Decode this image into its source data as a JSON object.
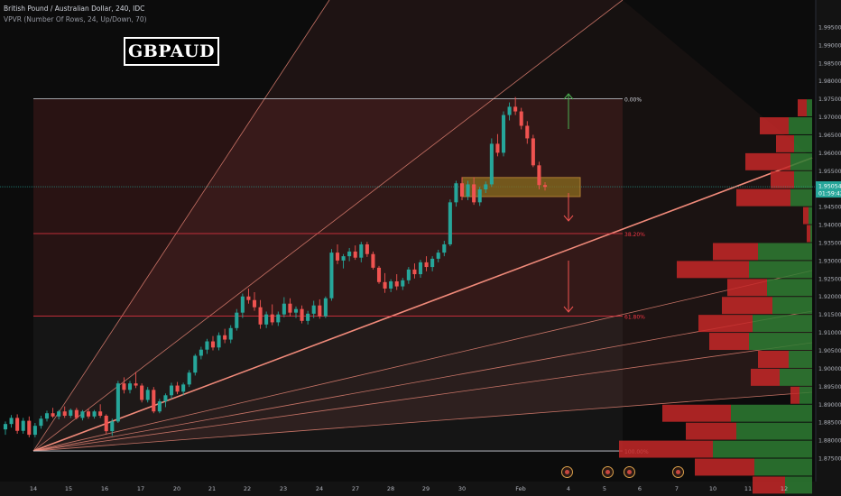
{
  "header": {
    "line1": "British Pound / Australian Dollar, 240, IDC",
    "line2": "VPVR (Number Of Rows, 24, Up/Down, 70)"
  },
  "symbol_label": "GBPAUD",
  "colors": {
    "background": "#0c0c0c",
    "up_candle": "#26a69a",
    "down_candle": "#ef5350",
    "fan_line": "#f08a7a",
    "fib_line": "#f23645",
    "zone_fill": "#8a6d1e",
    "vp_up": "#2e7d32",
    "vp_down": "#c62828"
  },
  "chart_data": {
    "type": "candlestick",
    "y_axis_ticks": [
      "1.99500",
      "1.99000",
      "1.98500",
      "1.98000",
      "1.97500",
      "1.97000",
      "1.96500",
      "1.96000",
      "1.95500",
      "1.95000",
      "1.94500",
      "1.94000",
      "1.93500",
      "1.93000",
      "1.92500",
      "1.92000",
      "1.91500",
      "1.91000",
      "1.90500",
      "1.90000",
      "1.89500",
      "1.89000",
      "1.88500",
      "1.88000",
      "1.87500"
    ],
    "ylim": [
      1.8735,
      1.9995
    ],
    "x_axis_ticks": [
      "14",
      "15",
      "16",
      "17",
      "20",
      "21",
      "22",
      "23",
      "24",
      "27",
      "28",
      "29",
      "30",
      "Feb",
      "4",
      "5",
      "6",
      "7",
      "10",
      "11",
      "12"
    ],
    "current_price": "1.95054",
    "countdown": "01:59:42",
    "fib_levels": [
      {
        "label": "0.00%",
        "price": 1.975
      },
      {
        "label": "38.20%",
        "price": 1.9375
      },
      {
        "label": "61.80%",
        "price": 1.9145
      },
      {
        "label": "100.00%",
        "price": 1.877
      }
    ],
    "zone": {
      "top": 1.9531,
      "bottom": 1.9478
    },
    "candles": [
      [
        1.883,
        1.8852,
        1.8815,
        1.8845
      ],
      [
        1.8845,
        1.887,
        1.8835,
        1.8862
      ],
      [
        1.8862,
        1.8872,
        1.8818,
        1.8826
      ],
      [
        1.8826,
        1.8862,
        1.8818,
        1.8854
      ],
      [
        1.8854,
        1.8866,
        1.8808,
        1.8815
      ],
      [
        1.8815,
        1.8848,
        1.8808,
        1.884
      ],
      [
        1.884,
        1.8868,
        1.8832,
        1.886
      ],
      [
        1.886,
        1.8882,
        1.8852,
        1.8875
      ],
      [
        1.8875,
        1.889,
        1.8862,
        1.8866
      ],
      [
        1.8866,
        1.8884,
        1.8858,
        1.888
      ],
      [
        1.888,
        1.8894,
        1.8862,
        1.8868
      ],
      [
        1.8868,
        1.8888,
        1.8862,
        1.8884
      ],
      [
        1.8884,
        1.889,
        1.8858,
        1.8862
      ],
      [
        1.8862,
        1.8884,
        1.8855,
        1.888
      ],
      [
        1.888,
        1.8888,
        1.886,
        1.8866
      ],
      [
        1.8866,
        1.8884,
        1.886,
        1.888
      ],
      [
        1.888,
        1.89,
        1.8862,
        1.8868
      ],
      [
        1.8868,
        1.8872,
        1.8818,
        1.8825
      ],
      [
        1.8825,
        1.886,
        1.8812,
        1.8852
      ],
      [
        1.8852,
        1.8965,
        1.8848,
        1.8958
      ],
      [
        1.8958,
        1.8975,
        1.893,
        1.894
      ],
      [
        1.894,
        1.8965,
        1.893,
        1.8958
      ],
      [
        1.8958,
        1.899,
        1.8945,
        1.8952
      ],
      [
        1.8952,
        1.8958,
        1.8905,
        1.8912
      ],
      [
        1.8912,
        1.8948,
        1.8905,
        1.894
      ],
      [
        1.894,
        1.8948,
        1.8875,
        1.888
      ],
      [
        1.888,
        1.8915,
        1.8875,
        1.8908
      ],
      [
        1.8908,
        1.893,
        1.8892,
        1.8925
      ],
      [
        1.8925,
        1.896,
        1.8915,
        1.8952
      ],
      [
        1.8952,
        1.8962,
        1.8928,
        1.8935
      ],
      [
        1.8935,
        1.896,
        1.8925,
        1.8955
      ],
      [
        1.8955,
        1.8995,
        1.8948,
        1.8988
      ],
      [
        1.8988,
        1.904,
        1.898,
        1.9035
      ],
      [
        1.9035,
        1.906,
        1.9025,
        1.9052
      ],
      [
        1.9052,
        1.9082,
        1.904,
        1.9075
      ],
      [
        1.9075,
        1.909,
        1.905,
        1.9058
      ],
      [
        1.9058,
        1.91,
        1.905,
        1.9092
      ],
      [
        1.9092,
        1.911,
        1.907,
        1.908
      ],
      [
        1.908,
        1.912,
        1.907,
        1.9112
      ],
      [
        1.9112,
        1.9165,
        1.9105,
        1.9155
      ],
      [
        1.9155,
        1.9208,
        1.914,
        1.92
      ],
      [
        1.92,
        1.9222,
        1.918,
        1.919
      ],
      [
        1.919,
        1.9212,
        1.916,
        1.917
      ],
      [
        1.917,
        1.919,
        1.911,
        1.9122
      ],
      [
        1.9122,
        1.9158,
        1.9112,
        1.915
      ],
      [
        1.915,
        1.9178,
        1.912,
        1.9128
      ],
      [
        1.9128,
        1.9158,
        1.9118,
        1.915
      ],
      [
        1.915,
        1.9198,
        1.9142,
        1.918
      ],
      [
        1.918,
        1.9195,
        1.9145,
        1.9155
      ],
      [
        1.9155,
        1.9172,
        1.914,
        1.9165
      ],
      [
        1.9165,
        1.9175,
        1.9125,
        1.9132
      ],
      [
        1.9132,
        1.916,
        1.9122,
        1.9152
      ],
      [
        1.9152,
        1.9188,
        1.914,
        1.9175
      ],
      [
        1.9175,
        1.9192,
        1.9138,
        1.9145
      ],
      [
        1.9145,
        1.92,
        1.914,
        1.9195
      ],
      [
        1.9195,
        1.9332,
        1.9188,
        1.9322
      ],
      [
        1.9322,
        1.9345,
        1.929,
        1.93
      ],
      [
        1.93,
        1.9318,
        1.9278,
        1.9312
      ],
      [
        1.9312,
        1.9335,
        1.9298,
        1.9325
      ],
      [
        1.9325,
        1.9342,
        1.9302,
        1.9308
      ],
      [
        1.9308,
        1.9352,
        1.9295,
        1.9345
      ],
      [
        1.9345,
        1.9352,
        1.931,
        1.9318
      ],
      [
        1.9318,
        1.9325,
        1.9275,
        1.928
      ],
      [
        1.928,
        1.9285,
        1.9235,
        1.924
      ],
      [
        1.924,
        1.9265,
        1.921,
        1.9222
      ],
      [
        1.9222,
        1.9248,
        1.9212,
        1.9242
      ],
      [
        1.9242,
        1.9262,
        1.9218,
        1.9228
      ],
      [
        1.9228,
        1.9252,
        1.9218,
        1.9245
      ],
      [
        1.9245,
        1.9282,
        1.9235,
        1.9275
      ],
      [
        1.9275,
        1.9292,
        1.925,
        1.9262
      ],
      [
        1.9262,
        1.9302,
        1.9252,
        1.9295
      ],
      [
        1.9295,
        1.9312,
        1.927,
        1.9282
      ],
      [
        1.9282,
        1.9312,
        1.927,
        1.9305
      ],
      [
        1.9305,
        1.933,
        1.9295,
        1.9322
      ],
      [
        1.9322,
        1.9355,
        1.9312,
        1.9345
      ],
      [
        1.9345,
        1.947,
        1.934,
        1.9462
      ],
      [
        1.9462,
        1.9522,
        1.945,
        1.9515
      ],
      [
        1.9515,
        1.9532,
        1.9468,
        1.9478
      ],
      [
        1.9478,
        1.9522,
        1.9468,
        1.9512
      ],
      [
        1.9512,
        1.9532,
        1.9455,
        1.9462
      ],
      [
        1.9462,
        1.9505,
        1.9452,
        1.9498
      ],
      [
        1.9498,
        1.952,
        1.9488,
        1.9512
      ],
      [
        1.9512,
        1.964,
        1.9505,
        1.9625
      ],
      [
        1.9625,
        1.9652,
        1.959,
        1.96
      ],
      [
        1.96,
        1.9715,
        1.959,
        1.9705
      ],
      [
        1.9705,
        1.974,
        1.969,
        1.9728
      ],
      [
        1.9728,
        1.9755,
        1.9705,
        1.9715
      ],
      [
        1.9715,
        1.9725,
        1.9665,
        1.9675
      ],
      [
        1.9675,
        1.9688,
        1.9625,
        1.964
      ],
      [
        1.964,
        1.965,
        1.956,
        1.9565
      ],
      [
        1.9565,
        1.9575,
        1.9498,
        1.951
      ],
      [
        1.951,
        1.9518,
        1.9495,
        1.9505
      ]
    ],
    "volume_profile": [
      {
        "price": 1.9725,
        "up": 0.03,
        "down": 0.05
      },
      {
        "price": 1.9675,
        "up": 0.13,
        "down": 0.16
      },
      {
        "price": 1.9625,
        "up": 0.1,
        "down": 0.1
      },
      {
        "price": 1.9575,
        "up": 0.12,
        "down": 0.25
      },
      {
        "price": 1.9525,
        "up": 0.1,
        "down": 0.13
      },
      {
        "price": 1.9475,
        "up": 0.12,
        "down": 0.3
      },
      {
        "price": 1.9425,
        "up": 0.02,
        "down": 0.03
      },
      {
        "price": 1.9375,
        "up": 0.01,
        "down": 0.02
      },
      {
        "price": 1.9325,
        "up": 0.3,
        "down": 0.25
      },
      {
        "price": 1.9275,
        "up": 0.35,
        "down": 0.4
      },
      {
        "price": 1.9225,
        "up": 0.25,
        "down": 0.22
      },
      {
        "price": 1.9175,
        "up": 0.22,
        "down": 0.28
      },
      {
        "price": 1.9125,
        "up": 0.33,
        "down": 0.3
      },
      {
        "price": 1.9075,
        "up": 0.35,
        "down": 0.22
      },
      {
        "price": 1.9025,
        "up": 0.13,
        "down": 0.17
      },
      {
        "price": 1.8975,
        "up": 0.18,
        "down": 0.16
      },
      {
        "price": 1.8925,
        "up": 0.07,
        "down": 0.05
      },
      {
        "price": 1.8875,
        "up": 0.45,
        "down": 0.38
      },
      {
        "price": 1.8825,
        "up": 0.42,
        "down": 0.28
      },
      {
        "price": 1.8775,
        "up": 0.55,
        "down": 0.52
      },
      {
        "price": 1.8725,
        "up": 0.32,
        "down": 0.33
      },
      {
        "price": 1.8675,
        "up": 0.15,
        "down": 0.18
      }
    ]
  }
}
